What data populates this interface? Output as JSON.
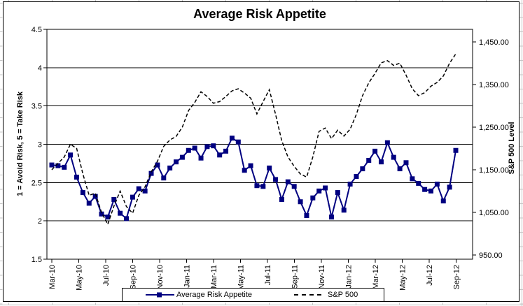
{
  "chart_data": {
    "type": "line",
    "title": "Average Risk Appetite",
    "legend_position": "bottom",
    "grid": "horizontal",
    "left_axis": {
      "title": "1 = Avoid Risk, 5 = Take Risk",
      "min": 1.5,
      "max": 4.5,
      "step": 0.5,
      "tick_labels": [
        "4.5",
        "4",
        "3.5",
        "3",
        "2.5",
        "2",
        "1.5"
      ]
    },
    "right_axis": {
      "title": "S&P 500 Level",
      "min": 950,
      "max": 1450,
      "step": 100,
      "tick_labels": [
        "1,450.00",
        "1,350.00",
        "1,250.00",
        "1,150.00",
        "1,050.00",
        "950.00"
      ]
    },
    "x_tick_labels": [
      "Mar-10",
      "May-10",
      "Jul-10",
      "Sep-10",
      "Nov-10",
      "Jan-11",
      "Mar-11",
      "May-11",
      "Jul-11",
      "Sep-11",
      "Nov-11",
      "Jan-12",
      "Mar-12",
      "May-12",
      "Jul-12",
      "Sep-12"
    ],
    "x_range": {
      "start": "Mar-10",
      "end": "Sep-12"
    },
    "series": [
      {
        "name": "Average Risk Appetite",
        "axis": "left",
        "color": "#000080",
        "style": "solid",
        "marker": "square",
        "values": [
          2.73,
          2.72,
          2.7,
          2.86,
          2.57,
          2.37,
          2.23,
          2.32,
          2.09,
          2.05,
          2.28,
          2.1,
          2.03,
          2.31,
          2.42,
          2.39,
          2.62,
          2.73,
          2.56,
          2.69,
          2.77,
          2.83,
          2.92,
          2.95,
          2.82,
          2.97,
          2.98,
          2.86,
          2.91,
          3.08,
          3.03,
          2.66,
          2.72,
          2.46,
          2.45,
          2.69,
          2.54,
          2.28,
          2.51,
          2.45,
          2.25,
          2.07,
          2.3,
          2.39,
          2.43,
          2.05,
          2.37,
          2.14,
          2.48,
          2.58,
          2.68,
          2.79,
          2.91,
          2.77,
          3.02,
          2.83,
          2.68,
          2.76,
          2.55,
          2.49,
          2.41,
          2.39,
          2.48,
          2.26,
          2.44,
          2.92
        ]
      },
      {
        "name": "S&P 500",
        "axis": "right",
        "color": "#000000",
        "style": "dashed",
        "marker": "none",
        "values": [
          1150,
          1165,
          1180,
          1210,
          1200,
          1140,
          1090,
          1095,
          1050,
          1022,
          1065,
          1100,
          1064,
          1048,
          1090,
          1110,
          1145,
          1170,
          1205,
          1220,
          1228,
          1250,
          1289,
          1308,
          1333,
          1322,
          1306,
          1310,
          1322,
          1335,
          1340,
          1330,
          1318,
          1281,
          1310,
          1338,
          1280,
          1218,
          1180,
          1158,
          1140,
          1133,
          1180,
          1240,
          1248,
          1223,
          1243,
          1229,
          1245,
          1280,
          1324,
          1354,
          1376,
          1401,
          1406,
          1395,
          1400,
          1372,
          1340,
          1324,
          1331,
          1346,
          1355,
          1370,
          1400,
          1422
        ]
      }
    ]
  }
}
